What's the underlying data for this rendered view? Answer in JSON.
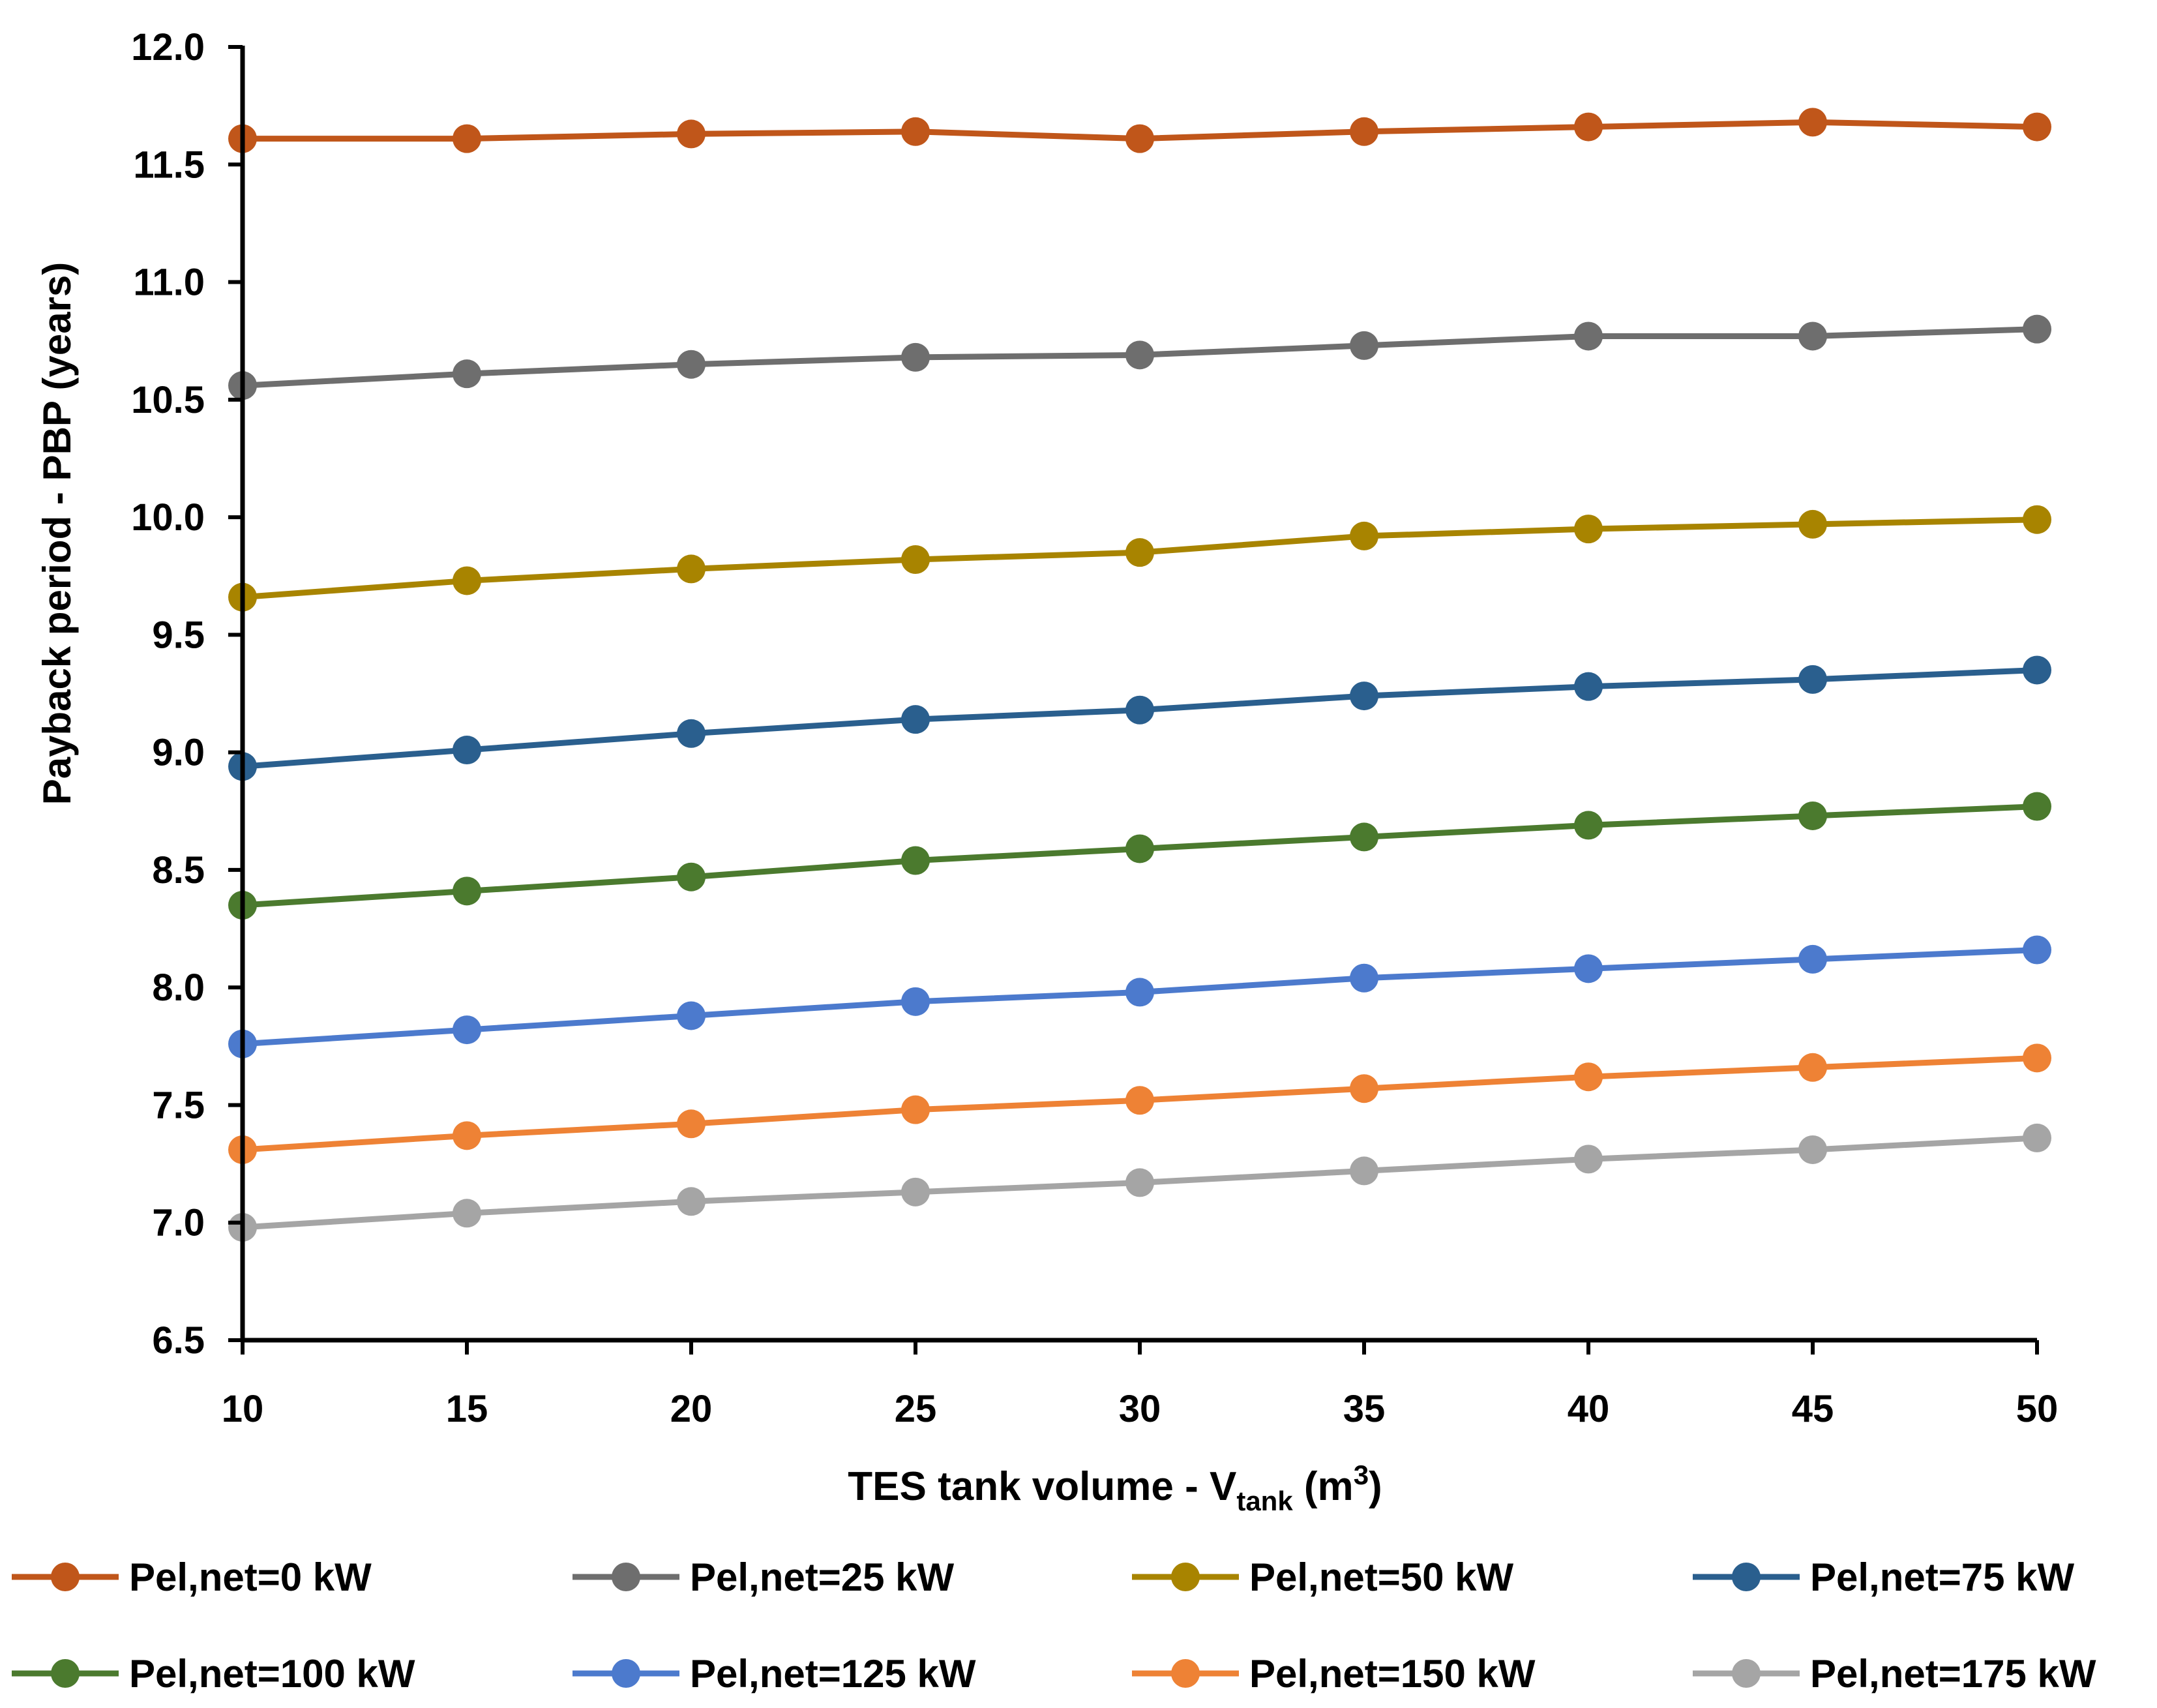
{
  "chart_data": {
    "type": "line",
    "title": "",
    "xlabel": {
      "main": "TES tank volume - V",
      "subscript": "tank",
      "unit_open": " (m",
      "superscript": "3",
      "unit_close": ")"
    },
    "ylabel": "Payback period - PBP (years)",
    "x": [
      10,
      15,
      20,
      25,
      30,
      35,
      40,
      45,
      50
    ],
    "xlim": [
      10,
      50
    ],
    "ylim": [
      6.5,
      12.0
    ],
    "x_ticks": [
      "10",
      "15",
      "20",
      "25",
      "30",
      "35",
      "40",
      "45",
      "50"
    ],
    "y_ticks": [
      "6.5",
      "7.0",
      "7.5",
      "8.0",
      "8.5",
      "9.0",
      "9.5",
      "10.0",
      "10.5",
      "11.0",
      "11.5",
      "12.0"
    ],
    "grid": false,
    "legend_position": "bottom",
    "series": [
      {
        "name": "Pel,net=0 kW",
        "color": "#C0561A",
        "values": [
          11.61,
          11.61,
          11.63,
          11.64,
          11.61,
          11.64,
          11.66,
          11.68,
          11.66
        ]
      },
      {
        "name": "Pel,net=25 kW",
        "color": "#6E6E6E",
        "values": [
          10.56,
          10.61,
          10.65,
          10.68,
          10.69,
          10.73,
          10.77,
          10.77,
          10.8
        ]
      },
      {
        "name": "Pel,net=50 kW",
        "color": "#A88400",
        "values": [
          9.66,
          9.73,
          9.78,
          9.82,
          9.85,
          9.92,
          9.95,
          9.97,
          9.99
        ]
      },
      {
        "name": "Pel,net=75 kW",
        "color": "#2A5F8E",
        "values": [
          8.94,
          9.01,
          9.08,
          9.14,
          9.18,
          9.24,
          9.28,
          9.31,
          9.35
        ]
      },
      {
        "name": "Pel,net=100 kW",
        "color": "#4B7A2E",
        "values": [
          8.35,
          8.41,
          8.47,
          8.54,
          8.59,
          8.64,
          8.69,
          8.73,
          8.77
        ]
      },
      {
        "name": "Pel,net=125 kW",
        "color": "#4C7ACD",
        "values": [
          7.76,
          7.82,
          7.88,
          7.94,
          7.98,
          8.04,
          8.08,
          8.12,
          8.16
        ]
      },
      {
        "name": "Pel,net=150 kW",
        "color": "#EE8235",
        "values": [
          7.31,
          7.37,
          7.42,
          7.48,
          7.52,
          7.57,
          7.62,
          7.66,
          7.7
        ]
      },
      {
        "name": "Pel,net=175 kW",
        "color": "#A5A5A5",
        "values": [
          6.98,
          7.04,
          7.09,
          7.13,
          7.17,
          7.22,
          7.27,
          7.31,
          7.36
        ]
      }
    ]
  }
}
